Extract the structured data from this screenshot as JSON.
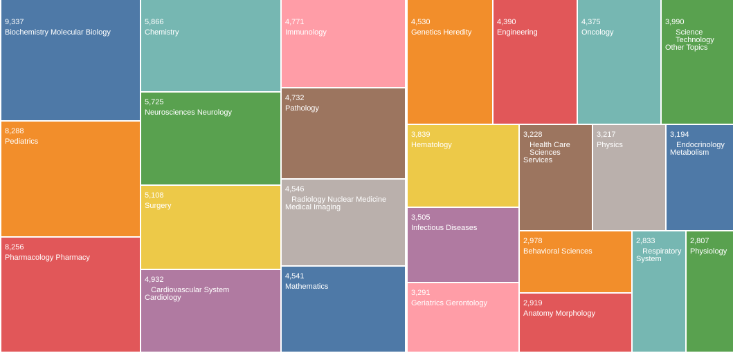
{
  "chart_data": {
    "type": "treemap",
    "palette": {
      "blue": "#4e79a7",
      "teal": "#76b7b2",
      "pink": "#ff9da7",
      "orange": "#f28e2b",
      "red": "#e15759",
      "green": "#59a14f",
      "yellow": "#edc948",
      "purple": "#b07aa1",
      "brown": "#9c755f",
      "gray": "#bab0ac"
    },
    "cells": [
      {
        "label": "Biochemistry Molecular Biology",
        "value": 9337,
        "display_value": "9,337",
        "color": "#4e79a7"
      },
      {
        "label": "Pediatrics",
        "value": 8288,
        "display_value": "8,288",
        "color": "#f28e2b"
      },
      {
        "label": "Pharmacology Pharmacy",
        "value": 8256,
        "display_value": "8,256",
        "color": "#e15759"
      },
      {
        "label": "Chemistry",
        "value": 5866,
        "display_value": "5,866",
        "color": "#76b7b2"
      },
      {
        "label": "Neurosciences Neurology",
        "value": 5725,
        "display_value": "5,725",
        "color": "#59a14f"
      },
      {
        "label": "Surgery",
        "value": 5108,
        "display_value": "5,108",
        "color": "#edc948"
      },
      {
        "label": "   Cardiovascular System\nCardiology",
        "value": 4932,
        "display_value": "4,932",
        "color": "#b07aa1"
      },
      {
        "label": "Immunology",
        "value": 4771,
        "display_value": "4,771",
        "color": "#ff9da7"
      },
      {
        "label": "Pathology",
        "value": 4732,
        "display_value": "4,732",
        "color": "#9c755f"
      },
      {
        "label": "   Radiology Nuclear Medicine\nMedical Imaging",
        "value": 4546,
        "display_value": "4,546",
        "color": "#bab0ac"
      },
      {
        "label": "Mathematics",
        "value": 4541,
        "display_value": "4,541",
        "color": "#4e79a7"
      },
      {
        "label": "Genetics Heredity",
        "value": 4530,
        "display_value": "4,530",
        "color": "#f28e2b"
      },
      {
        "label": "Engineering",
        "value": 4390,
        "display_value": "4,390",
        "color": "#e15759"
      },
      {
        "label": "Oncology",
        "value": 4375,
        "display_value": "4,375",
        "color": "#76b7b2"
      },
      {
        "label": "     Science\n     Technology\nOther Topics",
        "value": 3990,
        "display_value": "3,990",
        "color": "#59a14f"
      },
      {
        "label": "Hematology",
        "value": 3839,
        "display_value": "3,839",
        "color": "#edc948"
      },
      {
        "label": "Infectious Diseases",
        "value": 3505,
        "display_value": "3,505",
        "color": "#b07aa1"
      },
      {
        "label": "Geriatrics Gerontology",
        "value": 3291,
        "display_value": "3,291",
        "color": "#ff9da7"
      },
      {
        "label": "   Health Care\n   Sciences\nServices",
        "value": 3228,
        "display_value": "3,228",
        "color": "#9c755f"
      },
      {
        "label": "Physics",
        "value": 3217,
        "display_value": "3,217",
        "color": "#bab0ac"
      },
      {
        "label": "   Endocrinology\nMetabolism",
        "value": 3194,
        "display_value": "3,194",
        "color": "#4e79a7"
      },
      {
        "label": "Behavioral Sciences",
        "value": 2978,
        "display_value": "2,978",
        "color": "#f28e2b"
      },
      {
        "label": "Anatomy Morphology",
        "value": 2919,
        "display_value": "2,919",
        "color": "#e15759"
      },
      {
        "label": "   Respiratory\nSystem",
        "value": 2833,
        "display_value": "2,833",
        "color": "#76b7b2"
      },
      {
        "label": "Physiology",
        "value": 2807,
        "display_value": "2,807",
        "color": "#59a14f"
      }
    ]
  }
}
